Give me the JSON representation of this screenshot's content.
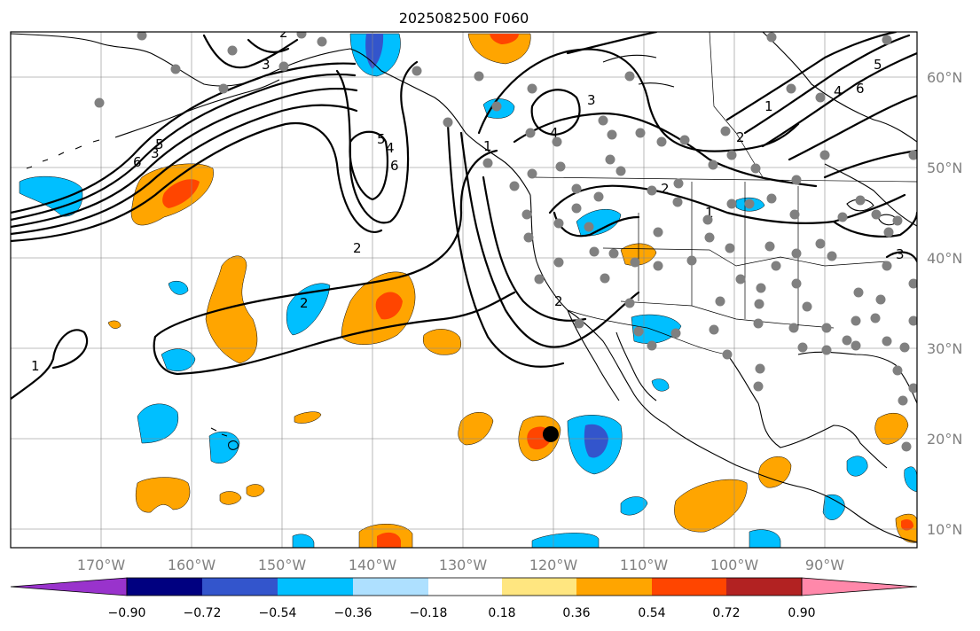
{
  "title": "2025082500 F060",
  "map": {
    "lon_labels": [
      "170°W",
      "160°W",
      "150°W",
      "140°W",
      "130°W",
      "120°W",
      "110°W",
      "100°W",
      "90°W"
    ],
    "lat_labels": [
      "60°N",
      "50°N",
      "40°N",
      "30°N",
      "20°N",
      "10°N"
    ],
    "contour_labels": [
      "1",
      "2",
      "3",
      "4",
      "5",
      "6",
      "1",
      "2",
      "3",
      "4",
      "5",
      "6",
      "2",
      "1",
      "2",
      "3",
      "4",
      "5",
      "6",
      "2",
      "1",
      "2",
      "3"
    ],
    "storm_marker": {
      "lon": -120.3,
      "lat": 20.5
    }
  },
  "colorbar": {
    "ticks": [
      "−0.90",
      "−0.72",
      "−0.54",
      "−0.36",
      "−0.18",
      "0.18",
      "0.36",
      "0.54",
      "0.72",
      "0.90"
    ],
    "colors": [
      "#9933cc",
      "#000080",
      "#3355cc",
      "#00bfff",
      "#aee0ff",
      "#ffffff",
      "#ffe680",
      "#ffa500",
      "#ff4500",
      "#b22222",
      "#ff88aa"
    ]
  }
}
